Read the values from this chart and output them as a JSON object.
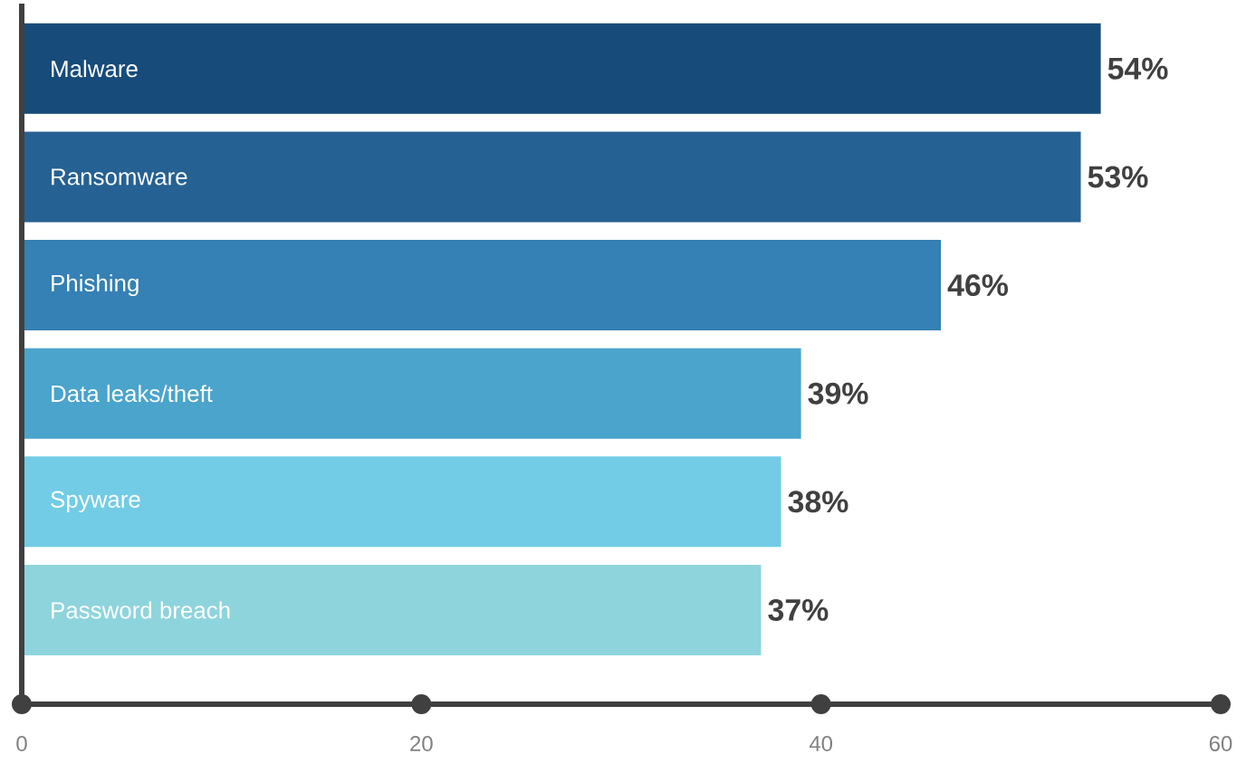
{
  "chart_data": {
    "type": "bar",
    "orientation": "horizontal",
    "categories": [
      "Malware",
      "Ransomware",
      "Phishing",
      "Data leaks/theft",
      "Spyware",
      "Password breach"
    ],
    "values": [
      54,
      53,
      46,
      39,
      38,
      37
    ],
    "value_labels": [
      "54%",
      "53%",
      "46%",
      "39%",
      "38%",
      "37%"
    ],
    "colors": [
      "#174b7a",
      "#266193",
      "#3580b4",
      "#4aa4cb",
      "#72cce5",
      "#8ed4dc"
    ],
    "xlim": [
      0,
      60
    ],
    "xticks": [
      0,
      20,
      40,
      60
    ]
  }
}
